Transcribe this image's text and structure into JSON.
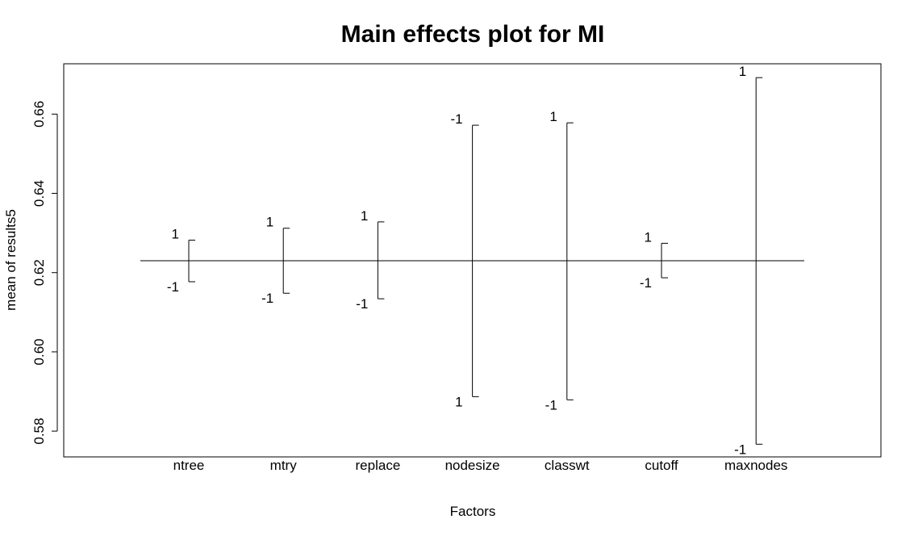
{
  "chart_data": {
    "type": "scatter",
    "title": "Main effects plot for MI",
    "xlabel": "Factors",
    "ylabel": "mean of results5",
    "ylim": [
      0.5735,
      0.6727
    ],
    "yticks": [
      0.58,
      0.6,
      0.62,
      0.64,
      0.66
    ],
    "ytick_labels": [
      "0.58",
      "0.60",
      "0.62",
      "0.64",
      "0.66"
    ],
    "grand_mean": 0.623,
    "legend": "none",
    "grid": false,
    "factors": [
      {
        "name": "ntree",
        "levels": [
          {
            "label": "1",
            "value": 0.6282
          },
          {
            "label": "-1",
            "value": 0.6177
          }
        ]
      },
      {
        "name": "mtry",
        "levels": [
          {
            "label": "1",
            "value": 0.6312
          },
          {
            "label": "-1",
            "value": 0.6148
          }
        ]
      },
      {
        "name": "replace",
        "levels": [
          {
            "label": "1",
            "value": 0.6328
          },
          {
            "label": "-1",
            "value": 0.6134
          }
        ]
      },
      {
        "name": "nodesize",
        "levels": [
          {
            "label": "-1",
            "value": 0.6572
          },
          {
            "label": "1",
            "value": 0.5887
          }
        ]
      },
      {
        "name": "classwt",
        "levels": [
          {
            "label": "1",
            "value": 0.6578
          },
          {
            "label": "-1",
            "value": 0.5879
          }
        ]
      },
      {
        "name": "cutoff",
        "levels": [
          {
            "label": "1",
            "value": 0.6274
          },
          {
            "label": "-1",
            "value": 0.6187
          }
        ]
      },
      {
        "name": "maxnodes",
        "levels": [
          {
            "label": "1",
            "value": 0.6692
          },
          {
            "label": "-1",
            "value": 0.5767
          }
        ]
      }
    ]
  }
}
